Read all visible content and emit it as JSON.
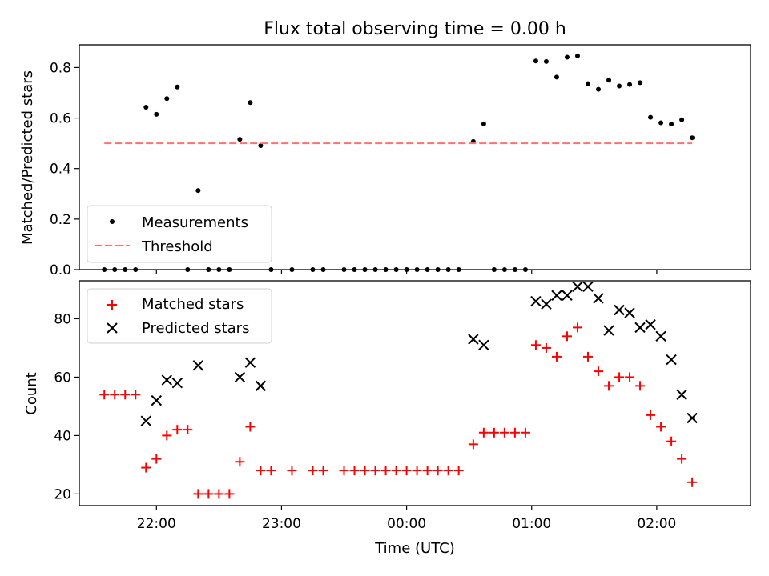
{
  "chart_data": [
    {
      "type": "scatter",
      "title": "Flux total observing time = 0.00 h",
      "xlabel": "",
      "ylabel": "Matched/Predicted stars",
      "xlim": [
        "21:23",
        "02:45"
      ],
      "ylim": [
        0,
        0.89
      ],
      "yticks": [
        "0.0",
        "0.2",
        "0.4",
        "0.6",
        "0.8"
      ],
      "grid": false,
      "legend_position": "lower-left",
      "series": [
        {
          "name": "Measurements",
          "marker": "dot",
          "color": "#000000",
          "points": [
            [
              "21:35",
              0.0
            ],
            [
              "21:40",
              0.0
            ],
            [
              "21:45",
              0.0
            ],
            [
              "21:50",
              0.0
            ],
            [
              "21:55",
              0.643
            ],
            [
              "22:00",
              0.615
            ],
            [
              "22:05",
              0.677
            ],
            [
              "22:10",
              0.723
            ],
            [
              "22:15",
              0.0
            ],
            [
              "22:20",
              0.313
            ],
            [
              "22:25",
              0.0
            ],
            [
              "22:30",
              0.0
            ],
            [
              "22:35",
              0.0
            ],
            [
              "22:40",
              0.516
            ],
            [
              "22:45",
              0.661
            ],
            [
              "22:50",
              0.491
            ],
            [
              "22:55",
              0.0
            ],
            [
              "23:05",
              0.0
            ],
            [
              "23:15",
              0.0
            ],
            [
              "23:20",
              0.0
            ],
            [
              "23:30",
              0.0
            ],
            [
              "23:35",
              0.0
            ],
            [
              "23:40",
              0.0
            ],
            [
              "23:45",
              0.0
            ],
            [
              "23:50",
              0.0
            ],
            [
              "23:55",
              0.0
            ],
            [
              "00:00",
              0.0
            ],
            [
              "00:05",
              0.0
            ],
            [
              "00:10",
              0.0
            ],
            [
              "00:15",
              0.0
            ],
            [
              "00:20",
              0.0
            ],
            [
              "00:25",
              0.0
            ],
            [
              "00:32",
              0.507
            ],
            [
              "00:37",
              0.577
            ],
            [
              "00:42",
              0.0
            ],
            [
              "00:47",
              0.0
            ],
            [
              "00:52",
              0.0
            ],
            [
              "00:57",
              0.0
            ],
            [
              "01:02",
              0.826
            ],
            [
              "01:07",
              0.824
            ],
            [
              "01:12",
              0.762
            ],
            [
              "01:17",
              0.841
            ],
            [
              "01:22",
              0.846
            ],
            [
              "01:27",
              0.736
            ],
            [
              "01:32",
              0.714
            ],
            [
              "01:37",
              0.75
            ],
            [
              "01:42",
              0.727
            ],
            [
              "01:47",
              0.733
            ],
            [
              "01:52",
              0.74
            ],
            [
              "01:57",
              0.603
            ],
            [
              "02:02",
              0.581
            ],
            [
              "02:07",
              0.576
            ],
            [
              "02:12",
              0.593
            ],
            [
              "02:17",
              0.522
            ]
          ]
        },
        {
          "name": "Threshold",
          "style": "dashed-line",
          "color": "#ff7070",
          "points": [
            [
              "21:35",
              0.5
            ],
            [
              "02:17",
              0.5
            ]
          ]
        }
      ]
    },
    {
      "type": "scatter",
      "title": "",
      "xlabel": "Time (UTC)",
      "ylabel": "Count",
      "xlim": [
        "21:23",
        "02:45"
      ],
      "ylim": [
        16,
        93
      ],
      "xticks": [
        "22:00",
        "23:00",
        "00:00",
        "01:00",
        "02:00"
      ],
      "yticks": [
        "20",
        "40",
        "60",
        "80"
      ],
      "grid": false,
      "legend_position": "upper-left",
      "series": [
        {
          "name": "Matched stars",
          "marker": "plus",
          "color": "#ff0000",
          "points": [
            [
              "21:35",
              54
            ],
            [
              "21:40",
              54
            ],
            [
              "21:45",
              54
            ],
            [
              "21:50",
              54
            ],
            [
              "21:55",
              29
            ],
            [
              "22:00",
              32
            ],
            [
              "22:05",
              40
            ],
            [
              "22:10",
              42
            ],
            [
              "22:15",
              42
            ],
            [
              "22:20",
              20
            ],
            [
              "22:25",
              20
            ],
            [
              "22:30",
              20
            ],
            [
              "22:35",
              20
            ],
            [
              "22:40",
              31
            ],
            [
              "22:45",
              43
            ],
            [
              "22:50",
              28
            ],
            [
              "22:55",
              28
            ],
            [
              "23:05",
              28
            ],
            [
              "23:15",
              28
            ],
            [
              "23:20",
              28
            ],
            [
              "23:30",
              28
            ],
            [
              "23:35",
              28
            ],
            [
              "23:40",
              28
            ],
            [
              "23:45",
              28
            ],
            [
              "23:50",
              28
            ],
            [
              "23:55",
              28
            ],
            [
              "00:00",
              28
            ],
            [
              "00:05",
              28
            ],
            [
              "00:10",
              28
            ],
            [
              "00:15",
              28
            ],
            [
              "00:20",
              28
            ],
            [
              "00:25",
              28
            ],
            [
              "00:32",
              37
            ],
            [
              "00:37",
              41
            ],
            [
              "00:42",
              41
            ],
            [
              "00:47",
              41
            ],
            [
              "00:52",
              41
            ],
            [
              "00:57",
              41
            ],
            [
              "01:02",
              71
            ],
            [
              "01:07",
              70
            ],
            [
              "01:12",
              67
            ],
            [
              "01:17",
              74
            ],
            [
              "01:22",
              77
            ],
            [
              "01:27",
              67
            ],
            [
              "01:32",
              62
            ],
            [
              "01:37",
              57
            ],
            [
              "01:42",
              60
            ],
            [
              "01:47",
              60
            ],
            [
              "01:52",
              57
            ],
            [
              "01:57",
              47
            ],
            [
              "02:02",
              43
            ],
            [
              "02:07",
              38
            ],
            [
              "02:12",
              32
            ],
            [
              "02:17",
              24
            ]
          ]
        },
        {
          "name": "Predicted stars",
          "marker": "x",
          "color": "#000000",
          "points": [
            [
              "21:55",
              45
            ],
            [
              "22:00",
              52
            ],
            [
              "22:05",
              59
            ],
            [
              "22:10",
              58
            ],
            [
              "22:20",
              64
            ],
            [
              "22:40",
              60
            ],
            [
              "22:45",
              65
            ],
            [
              "22:50",
              57
            ],
            [
              "00:32",
              73
            ],
            [
              "00:37",
              71
            ],
            [
              "01:02",
              86
            ],
            [
              "01:07",
              85
            ],
            [
              "01:12",
              88
            ],
            [
              "01:17",
              88
            ],
            [
              "01:22",
              91
            ],
            [
              "01:27",
              91
            ],
            [
              "01:32",
              87
            ],
            [
              "01:37",
              76
            ],
            [
              "01:42",
              83
            ],
            [
              "01:47",
              82
            ],
            [
              "01:52",
              77
            ],
            [
              "01:57",
              78
            ],
            [
              "02:02",
              74
            ],
            [
              "02:07",
              66
            ],
            [
              "02:12",
              54
            ],
            [
              "02:17",
              46
            ]
          ]
        }
      ]
    }
  ]
}
